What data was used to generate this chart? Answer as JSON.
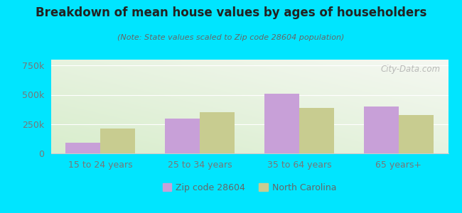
{
  "title": "Breakdown of mean house values by ages of householders",
  "subtitle": "(Note: State values scaled to Zip code 28604 population)",
  "categories": [
    "15 to 24 years",
    "25 to 34 years",
    "35 to 64 years",
    "65 years+"
  ],
  "zip_values": [
    90000,
    300000,
    510000,
    400000
  ],
  "nc_values": [
    215000,
    350000,
    390000,
    330000
  ],
  "zip_color": "#c8a0d8",
  "nc_color": "#c8cc90",
  "background_outer": "#00e5ff",
  "background_inner_green": "#d8edcc",
  "background_inner_white": "#f5f8f2",
  "ylim": [
    0,
    800000
  ],
  "yticks": [
    0,
    250000,
    500000,
    750000
  ],
  "ytick_labels": [
    "0",
    "250k",
    "500k",
    "750k"
  ],
  "watermark": "City-Data.com",
  "legend_zip": "Zip code 28604",
  "legend_nc": "North Carolina",
  "bar_width": 0.35,
  "title_fontsize": 12,
  "subtitle_fontsize": 8,
  "tick_fontsize": 9
}
